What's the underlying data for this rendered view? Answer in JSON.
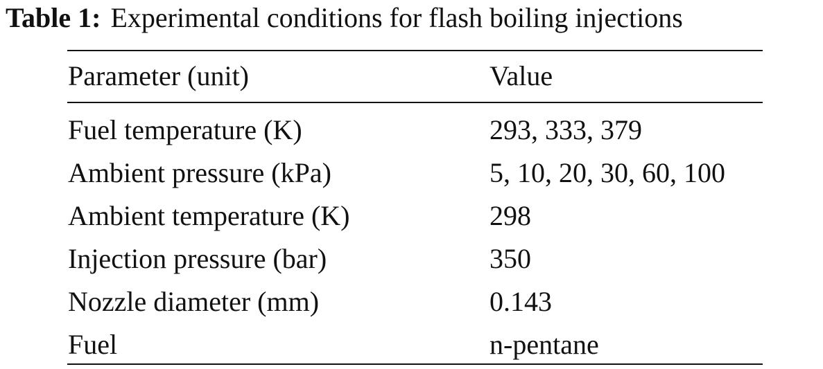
{
  "caption": {
    "label": "Table 1:",
    "text": "Experimental conditions for flash boiling injections"
  },
  "table": {
    "headers": {
      "parameter": "Parameter (unit)",
      "value": "Value"
    },
    "rows": [
      {
        "parameter": "Fuel temperature (K)",
        "value": "293, 333, 379"
      },
      {
        "parameter": "Ambient pressure (kPa)",
        "value": "5, 10, 20, 30, 60, 100"
      },
      {
        "parameter": "Ambient temperature (K)",
        "value": "298"
      },
      {
        "parameter": "Injection pressure (bar)",
        "value": "350"
      },
      {
        "parameter": "Nozzle diameter (mm)",
        "value": "0.143"
      },
      {
        "parameter": "Fuel",
        "value": "n-pentane"
      }
    ]
  }
}
